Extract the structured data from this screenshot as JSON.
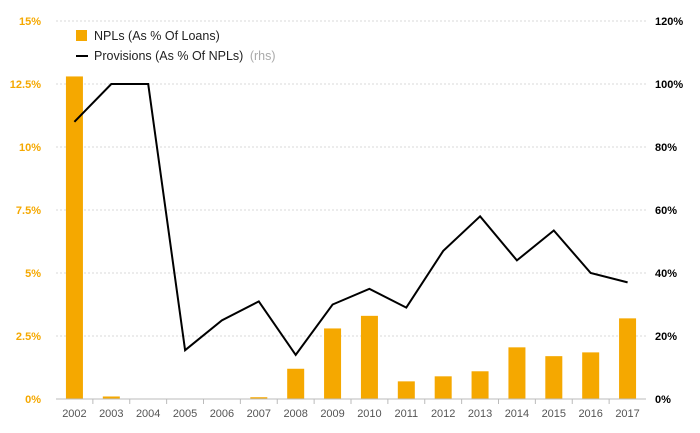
{
  "chart_data": {
    "type": "bar",
    "categories": [
      "2002",
      "2003",
      "2004",
      "2005",
      "2006",
      "2007",
      "2008",
      "2009",
      "2010",
      "2011",
      "2012",
      "2013",
      "2014",
      "2015",
      "2016",
      "2017"
    ],
    "series": [
      {
        "name": "NPLs (As % Of Loans)",
        "type": "bar",
        "axis": "left",
        "color": "#f5a800",
        "values": [
          12.8,
          0.1,
          0,
          0,
          0,
          0.07,
          1.2,
          2.8,
          3.3,
          0.7,
          0.9,
          1.1,
          2.05,
          1.7,
          1.85,
          3.2
        ]
      },
      {
        "name": "Provisions (As % Of NPLs)",
        "name_suffix": "(rhs)",
        "type": "line",
        "axis": "right",
        "color": "#000000",
        "values": [
          88,
          100,
          100,
          15.5,
          25,
          31,
          14,
          30,
          35,
          29,
          47,
          58,
          44,
          53.5,
          40,
          37
        ]
      }
    ],
    "y_left": {
      "min": 0,
      "max": 15,
      "ticks": [
        "0%",
        "2.5%",
        "5%",
        "7.5%",
        "10%",
        "12.5%",
        "15%"
      ]
    },
    "y_right": {
      "min": 0,
      "max": 120,
      "ticks": [
        "0%",
        "20%",
        "40%",
        "60%",
        "80%",
        "100%",
        "120%"
      ]
    },
    "grid": "horizontal-dashed",
    "legend": "top-left"
  }
}
